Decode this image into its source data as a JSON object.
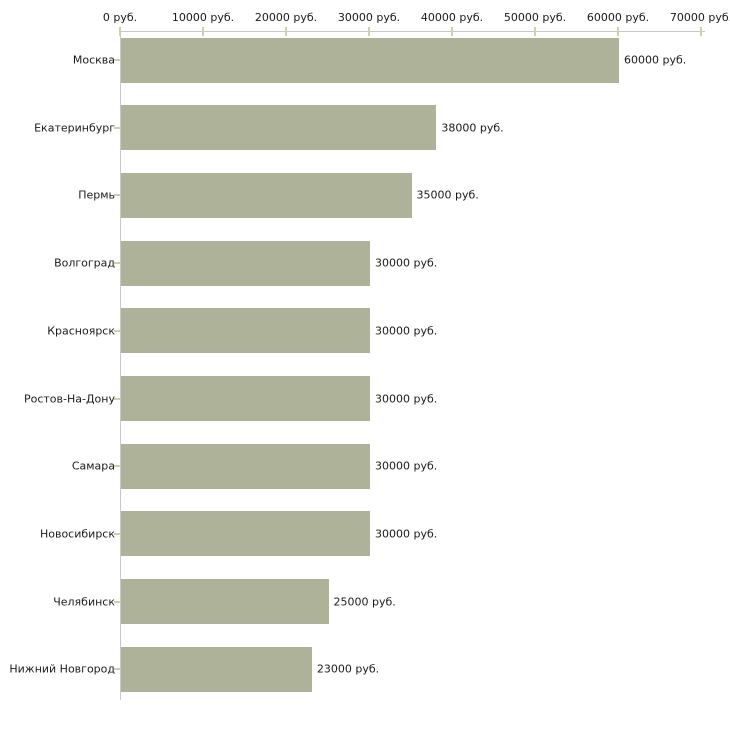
{
  "chart_data": {
    "type": "bar",
    "orientation": "horizontal",
    "title": "",
    "xlabel": "",
    "ylabel": "",
    "unit": "руб.",
    "categories": [
      "Москва",
      "Екатеринбург",
      "Пермь",
      "Волгоград",
      "Красноярск",
      "Ростов-На-Дону",
      "Самара",
      "Новосибирск",
      "Челябинск",
      "Нижний Новгород"
    ],
    "values": [
      60000,
      38000,
      35000,
      30000,
      30000,
      30000,
      30000,
      30000,
      25000,
      23000
    ],
    "value_labels": [
      "60000 руб.",
      "38000 руб.",
      "35000 руб.",
      "30000 руб.",
      "30000 руб.",
      "30000 руб.",
      "30000 руб.",
      "30000 руб.",
      "25000 руб.",
      "23000 руб."
    ],
    "x_ticks": [
      0,
      10000,
      20000,
      30000,
      40000,
      50000,
      60000,
      70000
    ],
    "x_tick_labels": [
      "0 руб.",
      "10000 руб.",
      "20000 руб.",
      "30000 руб.",
      "40000 руб.",
      "50000 руб.",
      "60000 руб.",
      "70000 руб."
    ],
    "xlim": [
      0,
      70000
    ],
    "axis_position": "top",
    "grid": false,
    "legend": false,
    "colors": {
      "bar": "#aeb299",
      "axis_line": "#c8c8c8",
      "tick_mark": "#ccd1ab",
      "text": "#1b1b1b",
      "background": "#ffffff"
    }
  }
}
